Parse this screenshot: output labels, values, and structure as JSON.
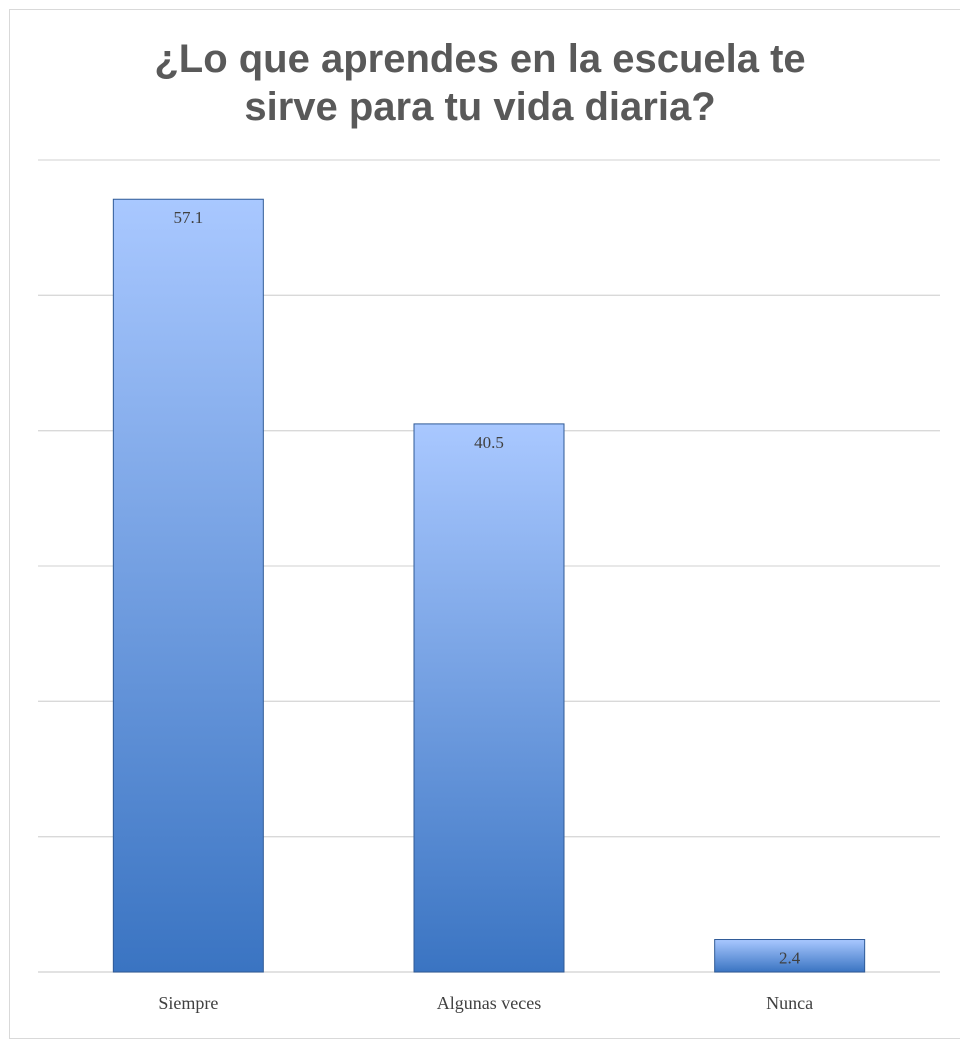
{
  "chart_data": {
    "type": "bar",
    "title": "¿Lo que aprendes en la escuela te\nsirve para tu vida diaria?",
    "xlabel": "",
    "ylabel": "",
    "categories": [
      "Siempre",
      "Algunas veces",
      "Nunca"
    ],
    "values": [
      57.1,
      40.5,
      2.4
    ],
    "data_labels": [
      "57.1",
      "40.5",
      "2.4"
    ],
    "ylim": [
      0,
      60
    ],
    "grid": true,
    "legend": "none",
    "y_tick_labels_visible": false,
    "colors": {
      "bar_top": "#a9c8ff",
      "bar_bottom": "#3a74c2",
      "bar_edge": "#2f5a96",
      "gridline": "#d9d9d9",
      "title": "#595959",
      "label": "#404040"
    }
  }
}
